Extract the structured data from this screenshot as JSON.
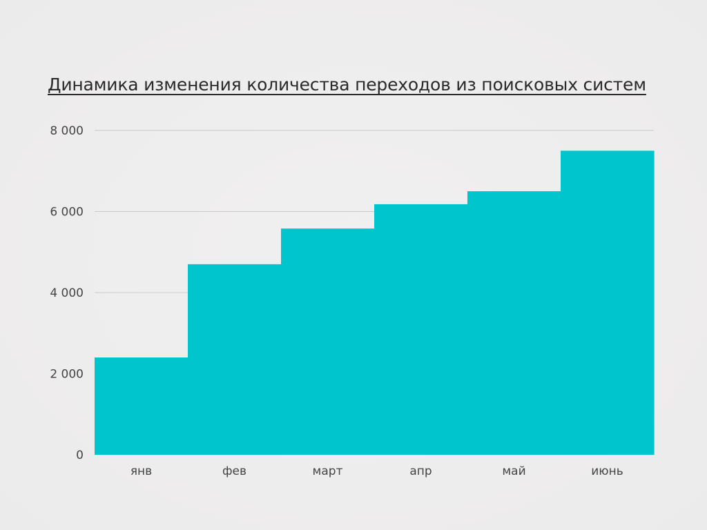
{
  "chart_data": {
    "type": "bar",
    "title": "Динамика изменения количества переходов из поисковых систем",
    "categories": [
      "янв",
      "фев",
      "март",
      "апр",
      "май",
      "июнь"
    ],
    "values": [
      2400,
      4700,
      5580,
      6180,
      6500,
      7500
    ],
    "y_ticks": [
      "0",
      "2 000",
      "4 000",
      "6 000",
      "8 000"
    ],
    "ylim": [
      0,
      8000
    ],
    "xlabel": "",
    "ylabel": "",
    "grid": true,
    "bar_color": "#00c5cc",
    "grid_color": "#c9c9c9"
  }
}
